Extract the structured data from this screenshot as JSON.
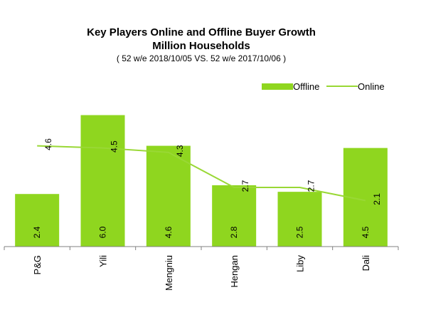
{
  "chart_data": {
    "type": "bar",
    "title_line1": "Key Players Online and Offline Buyer Growth",
    "title_line2": "Million Households",
    "subtitle": "( 52 w/e 2018/10/05 VS. 52 w/e 2017/10/06 )",
    "categories": [
      "P&G",
      "Yili",
      "Mengniu",
      "Hengan",
      "Liby",
      "Dali"
    ],
    "series": [
      {
        "name": "Offline",
        "type": "bar",
        "values": [
          2.4,
          6.0,
          4.6,
          2.8,
          2.5,
          4.5
        ],
        "labels": [
          "2.4",
          "6.0",
          "4.6",
          "2.8",
          "2.5",
          "4.5"
        ]
      },
      {
        "name": "Online",
        "type": "line",
        "values": [
          4.6,
          4.5,
          4.3,
          2.7,
          2.7,
          2.1
        ],
        "labels": [
          "4.6",
          "4.5",
          "4.3",
          "2.7",
          "2.7",
          "2.1"
        ]
      }
    ],
    "xlabel": "",
    "ylabel": "",
    "ylim": [
      0,
      6.7
    ],
    "grid": false,
    "legend": "top-right",
    "colors": {
      "offline": "#8fd61f",
      "online": "#99d835",
      "axis": "#808080"
    }
  }
}
